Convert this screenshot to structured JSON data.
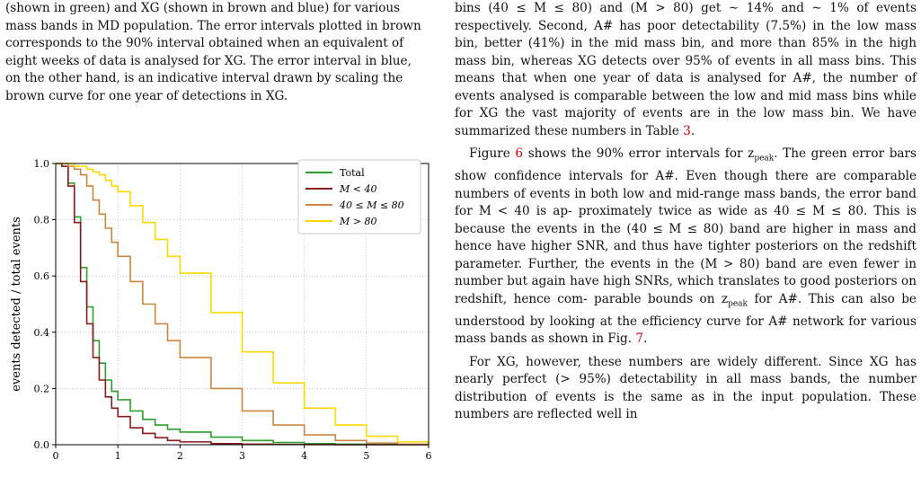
{
  "left_column": {
    "lines": [
      "(shown in green) and XG (shown in brown and blue) for various",
      "mass bands in MD population. The error intervals plotted in brown",
      "corresponds to the 90% interval obtained when an equivalent of",
      "eight weeks of data is analysed for XG. The error interval in blue,",
      "on the other hand, is an indicative interval drawn by scaling the",
      "brown curve for one year of detections in XG."
    ]
  },
  "right_column": {
    "para1_lines": [
      "bins (40 ≤ M ≤ 80) and (M > 80) get ∼ 14% and ∼ 1% of",
      "events respectively. Second, A# has poor detectability (7.5%)",
      "in the low mass bin, better (41%) in the mid mass bin, and",
      "more than 85% in the high mass bin, whereas XG detects",
      "over 95% of events in all mass bins. This means that when",
      "one year of data is analysed for A#, the number of events",
      "analysed is comparable between the low and mid mass bins",
      "while for XG the vast majority of events are in the low mass",
      "bin. We have summarized these numbers in Table "
    ],
    "para1_ref": "3",
    "para1_end": ".",
    "para2_lines": [
      "Figure ",
      " shows the 90% error intervals for z",
      ". The green",
      "error bars show confidence intervals for A#. Even though",
      "there are comparable numbers of events in both low and",
      "mid-range mass bands, the error band for M < 40 is ap-",
      "proximately twice as wide as 40 ≤ M ≤ 80. This is because",
      "the events in the (40 ≤ M ≤ 80) band are higher in mass and",
      "hence have higher SNR, and thus have tighter posteriors on",
      "the redshift parameter. Further, the events in the (M > 80)",
      "band are even fewer in number but again have high SNRs,",
      "which translates to good posteriors on redshift, hence com-",
      "parable bounds on z",
      " for A#. This can also be understood",
      "by looking at the efficiency curve for A# network for various",
      "mass bands as shown in Fig. ",
      "."
    ],
    "ref_fig6": "6",
    "ref_fig7": "7",
    "sub_peak": "peak",
    "para3_lines": [
      "For XG, however, these numbers are widely different. Since",
      "XG has nearly perfect (> 95%) detectability in all mass",
      "bands, the number distribution of events is the same as in",
      "the input population. These numbers are reflected well in"
    ]
  },
  "colors": {
    "total": "#2ca02c",
    "low": "#8b1a1a",
    "mid": "#cd853f",
    "high": "#ffd700"
  },
  "chart_data": {
    "type": "line",
    "step": true,
    "xlabel": "z",
    "ylabel": "events detected / total events",
    "xlim": [
      0,
      6
    ],
    "ylim": [
      0,
      1.0
    ],
    "xticks": [
      "0",
      "1",
      "2",
      "3",
      "4",
      "5",
      "6"
    ],
    "yticks": [
      "0.0",
      "0.2",
      "0.4",
      "0.6",
      "0.8",
      "1.0"
    ],
    "grid": true,
    "legend_position": "top-right",
    "x": [
      0,
      0.1,
      0.2,
      0.3,
      0.4,
      0.5,
      0.6,
      0.7,
      0.8,
      0.9,
      1.0,
      1.2,
      1.4,
      1.6,
      1.8,
      2.0,
      2.5,
      3.0,
      3.5,
      4.0,
      4.5,
      5.0,
      5.5,
      6.0
    ],
    "series": [
      {
        "name": "Total",
        "color_key": "total",
        "values": [
          1.0,
          0.99,
          0.93,
          0.81,
          0.63,
          0.49,
          0.37,
          0.29,
          0.23,
          0.19,
          0.16,
          0.12,
          0.09,
          0.07,
          0.055,
          0.045,
          0.027,
          0.015,
          0.008,
          0.004,
          0.002,
          0.001,
          0.0005,
          0.0
        ]
      },
      {
        "name": "M < 40",
        "color_key": "low",
        "values": [
          1.0,
          0.99,
          0.92,
          0.79,
          0.58,
          0.43,
          0.31,
          0.23,
          0.17,
          0.13,
          0.1,
          0.06,
          0.04,
          0.025,
          0.015,
          0.01,
          0.004,
          0.002,
          0.001,
          0.0005,
          0.0,
          0.0,
          0.0,
          0.0
        ]
      },
      {
        "name": "40 ≤ M ≤ 80",
        "color_key": "mid",
        "values": [
          1.0,
          1.0,
          0.99,
          0.98,
          0.96,
          0.92,
          0.87,
          0.82,
          0.77,
          0.72,
          0.67,
          0.58,
          0.5,
          0.43,
          0.37,
          0.31,
          0.2,
          0.12,
          0.07,
          0.035,
          0.015,
          0.006,
          0.002,
          0.0
        ]
      },
      {
        "name": "M > 80",
        "color_key": "high",
        "values": [
          1.0,
          1.0,
          1.0,
          0.99,
          0.99,
          0.98,
          0.97,
          0.96,
          0.94,
          0.92,
          0.9,
          0.85,
          0.79,
          0.73,
          0.67,
          0.61,
          0.47,
          0.33,
          0.22,
          0.13,
          0.07,
          0.03,
          0.01,
          0.0
        ]
      }
    ]
  }
}
